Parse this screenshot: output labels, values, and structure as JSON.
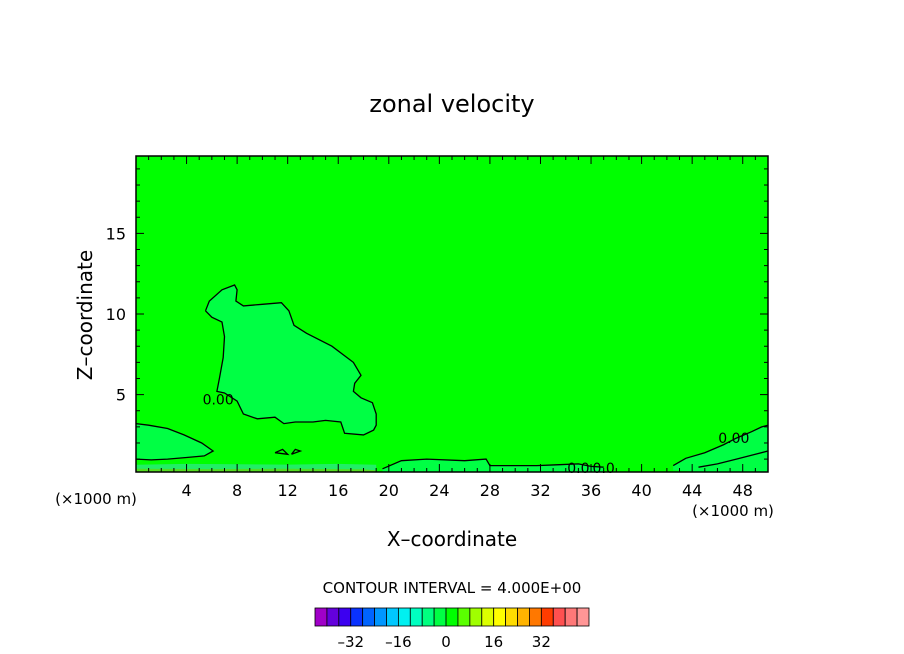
{
  "chart_data": {
    "type": "contour",
    "title": "zonal velocity",
    "xlabel": "X–coordinate",
    "ylabel": "Z–coordinate",
    "x_unit_left": "(×1000 m)",
    "x_unit_right": "(×1000 m)",
    "xlim": [
      0,
      50
    ],
    "ylim": [
      0.2,
      19.8
    ],
    "x_ticks": [
      4,
      8,
      12,
      16,
      20,
      24,
      28,
      32,
      36,
      40,
      44,
      48
    ],
    "y_ticks": [
      5,
      10,
      15
    ],
    "background_fill": "#00ff00",
    "contour_interval_text": "CONTOUR INTERVAL = 4.000E+00",
    "contour_labels": [
      {
        "text": "0.00",
        "x": 6.5,
        "z": 4.7
      },
      {
        "text": "0.0",
        "x": 35,
        "z": 0.45
      },
      {
        "text": "0.0",
        "x": 37,
        "z": 0.45
      },
      {
        "text": "0.00",
        "x": 47.3,
        "z": 2.3
      }
    ],
    "regions": [
      {
        "name": "upper negative lobe",
        "fill": "#00ff44",
        "points": [
          [
            5.5,
            10.2
          ],
          [
            5.8,
            10.8
          ],
          [
            6.8,
            11.5
          ],
          [
            7.8,
            11.8
          ],
          [
            8,
            11.5
          ],
          [
            7.9,
            10.8
          ],
          [
            8.5,
            10.5
          ],
          [
            10,
            10.6
          ],
          [
            11.5,
            10.7
          ],
          [
            12.1,
            10.2
          ],
          [
            12.5,
            9.3
          ],
          [
            13.5,
            8.8
          ],
          [
            15.5,
            8
          ],
          [
            17.2,
            7
          ],
          [
            17.8,
            6.2
          ],
          [
            17.3,
            5.7
          ],
          [
            17.2,
            5.2
          ],
          [
            17.8,
            4.8
          ],
          [
            18.7,
            4.5
          ],
          [
            19,
            3.8
          ],
          [
            19,
            3.1
          ],
          [
            18.8,
            2.8
          ],
          [
            18,
            2.5
          ],
          [
            16.5,
            2.6
          ],
          [
            16.2,
            3.3
          ],
          [
            15,
            3.4
          ],
          [
            14,
            3.3
          ],
          [
            12.6,
            3.3
          ],
          [
            11.7,
            3.2
          ],
          [
            11,
            3.6
          ],
          [
            9.6,
            3.5
          ],
          [
            8.5,
            3.8
          ],
          [
            8,
            4.6
          ],
          [
            7,
            5.1
          ],
          [
            6.4,
            5.2
          ],
          [
            6.6,
            6
          ],
          [
            6.9,
            7.3
          ],
          [
            7,
            8.6
          ],
          [
            6.8,
            9.5
          ],
          [
            6,
            9.8
          ]
        ]
      },
      {
        "name": "left low lobe",
        "fill": "#00ff44",
        "points": [
          [
            0,
            3.2
          ],
          [
            1,
            3.1
          ],
          [
            2.5,
            2.9
          ],
          [
            3.8,
            2.5
          ],
          [
            5.2,
            2
          ],
          [
            6.1,
            1.5
          ],
          [
            5.4,
            1.2
          ],
          [
            4,
            1.1
          ],
          [
            2.5,
            1
          ],
          [
            1.2,
            0.95
          ],
          [
            0,
            1
          ]
        ]
      },
      {
        "name": "surface layer",
        "fill": "#22ee66",
        "points": [
          [
            0,
            0.65
          ],
          [
            4,
            0.7
          ],
          [
            8,
            0.68
          ],
          [
            12,
            0.66
          ],
          [
            16,
            0.7
          ],
          [
            19,
            0.65
          ],
          [
            19,
            0.2
          ],
          [
            0,
            0.2
          ]
        ]
      },
      {
        "name": "lowest surface band",
        "fill": "#55dd22",
        "points": [
          [
            0,
            0.4
          ],
          [
            6,
            0.38
          ],
          [
            12,
            0.4
          ],
          [
            18,
            0.37
          ],
          [
            19,
            0.3
          ],
          [
            19,
            0.2
          ],
          [
            0,
            0.2
          ]
        ]
      },
      {
        "name": "lower right strip",
        "fill": "#00ff44",
        "points": [
          [
            19.5,
            0.4
          ],
          [
            21,
            0.9
          ],
          [
            23,
            1
          ],
          [
            26,
            0.9
          ],
          [
            27.7,
            1
          ],
          [
            28,
            0.6
          ],
          [
            30,
            0.6
          ],
          [
            31.7,
            0.6
          ],
          [
            33.5,
            0.65
          ],
          [
            35,
            0.7
          ],
          [
            36,
            0.55
          ],
          [
            37,
            0.5
          ],
          [
            37,
            0.2
          ],
          [
            19.5,
            0.2
          ]
        ]
      },
      {
        "name": "right low lobe",
        "fill": "#00ff44",
        "points": [
          [
            42.5,
            0.6
          ],
          [
            43.5,
            1.05
          ],
          [
            45,
            1.4
          ],
          [
            46.5,
            1.9
          ],
          [
            47.5,
            2.3
          ],
          [
            48.7,
            2.7
          ],
          [
            49.5,
            3
          ],
          [
            50,
            3.1
          ],
          [
            50,
            0.2
          ],
          [
            45,
            0.2
          ],
          [
            42.5,
            0.3
          ]
        ]
      }
    ],
    "contours": [
      [
        [
          5.5,
          10.2
        ],
        [
          5.8,
          10.8
        ],
        [
          6.8,
          11.5
        ],
        [
          7.8,
          11.8
        ],
        [
          8,
          11.5
        ],
        [
          7.9,
          10.8
        ],
        [
          8.5,
          10.5
        ],
        [
          10,
          10.6
        ],
        [
          11.5,
          10.7
        ],
        [
          12.1,
          10.2
        ],
        [
          12.5,
          9.3
        ],
        [
          13.5,
          8.8
        ],
        [
          15.5,
          8
        ],
        [
          17.2,
          7
        ],
        [
          17.8,
          6.2
        ],
        [
          17.3,
          5.7
        ],
        [
          17.2,
          5.2
        ],
        [
          17.8,
          4.8
        ],
        [
          18.7,
          4.5
        ],
        [
          19,
          3.8
        ],
        [
          19,
          3.1
        ],
        [
          18.8,
          2.8
        ],
        [
          18,
          2.5
        ],
        [
          16.5,
          2.6
        ],
        [
          16.2,
          3.3
        ],
        [
          15,
          3.4
        ],
        [
          14,
          3.3
        ],
        [
          12.6,
          3.3
        ],
        [
          11.7,
          3.2
        ],
        [
          11,
          3.6
        ],
        [
          9.6,
          3.5
        ],
        [
          8.5,
          3.8
        ],
        [
          8,
          4.6
        ],
        [
          7,
          5.1
        ],
        [
          6.4,
          5.2
        ],
        [
          6.6,
          6
        ],
        [
          6.9,
          7.3
        ],
        [
          7,
          8.6
        ],
        [
          6.8,
          9.5
        ],
        [
          6,
          9.8
        ],
        [
          5.5,
          10.2
        ]
      ],
      [
        [
          0,
          3.2
        ],
        [
          1,
          3.1
        ],
        [
          2.5,
          2.9
        ],
        [
          3.8,
          2.5
        ],
        [
          5.2,
          2
        ],
        [
          6.1,
          1.5
        ],
        [
          5.4,
          1.2
        ],
        [
          4,
          1.1
        ],
        [
          2.5,
          1
        ],
        [
          1.2,
          0.95
        ],
        [
          0,
          1
        ]
      ],
      [
        [
          19.5,
          0.4
        ],
        [
          21,
          0.9
        ],
        [
          23,
          1
        ],
        [
          26,
          0.9
        ],
        [
          27.7,
          1
        ],
        [
          28,
          0.6
        ],
        [
          30,
          0.6
        ],
        [
          31.7,
          0.6
        ],
        [
          33.5,
          0.65
        ],
        [
          35,
          0.7
        ],
        [
          36,
          0.55
        ],
        [
          37,
          0.5
        ]
      ],
      [
        [
          42.5,
          0.6
        ],
        [
          43.5,
          1.05
        ],
        [
          45,
          1.4
        ],
        [
          46.5,
          1.9
        ],
        [
          47.5,
          2.3
        ],
        [
          48.7,
          2.7
        ],
        [
          49.5,
          3
        ],
        [
          50,
          3.1
        ]
      ],
      [
        [
          44.5,
          0.5
        ],
        [
          46,
          0.7
        ],
        [
          47.5,
          1
        ],
        [
          49,
          1.3
        ],
        [
          50,
          1.5
        ]
      ],
      [
        [
          11,
          1.4
        ],
        [
          11.6,
          1.6
        ],
        [
          12,
          1.3
        ],
        [
          11,
          1.4
        ]
      ],
      [
        [
          12.3,
          1.3
        ],
        [
          12.6,
          1.6
        ],
        [
          13,
          1.5
        ],
        [
          12.3,
          1.3
        ]
      ]
    ],
    "colorbar": {
      "colors": [
        "#a000c8",
        "#6400dc",
        "#3c00f0",
        "#0a32ff",
        "#0064ff",
        "#0096ff",
        "#00c8ff",
        "#00f0f0",
        "#00ffc0",
        "#00ff80",
        "#00ff44",
        "#00ff00",
        "#5aff00",
        "#a0ff00",
        "#dcff00",
        "#ffff00",
        "#ffdc00",
        "#ffb400",
        "#ff7800",
        "#ff3c00",
        "#ff5050",
        "#ff7878",
        "#ff9696"
      ],
      "tick_labels": [
        "–32",
        "–16",
        "0",
        "16",
        "32"
      ]
    }
  }
}
